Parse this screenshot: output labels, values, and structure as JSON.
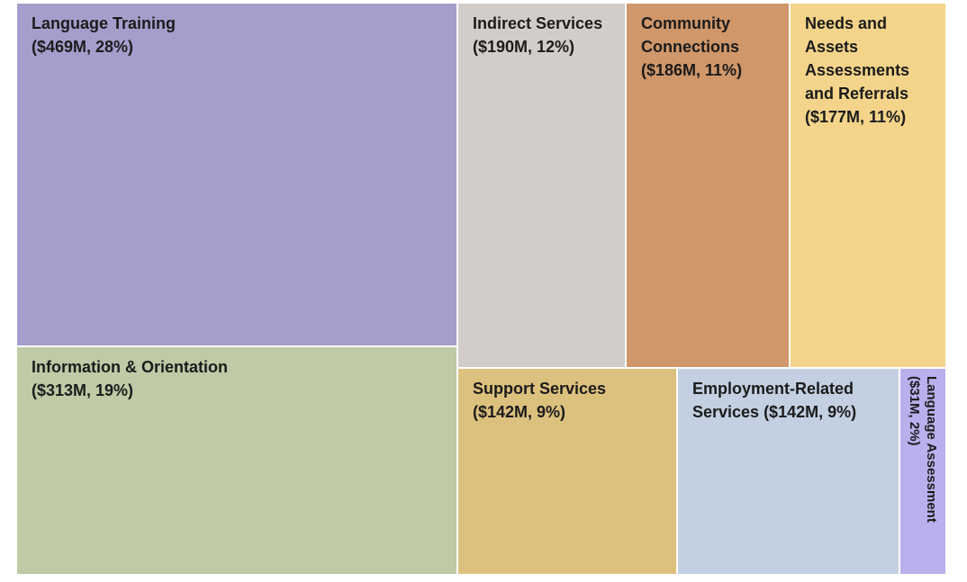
{
  "chart_data": {
    "type": "treemap",
    "unit": "$M",
    "items": [
      {
        "label_lines": [
          "Language Training",
          "($469M, 28%)"
        ],
        "value": 469,
        "percent": 28,
        "color": "#a59ecc"
      },
      {
        "label_lines": [
          "Information & Orientation",
          "($313M, 19%)"
        ],
        "value": 313,
        "percent": 19,
        "color": "#bfcaa6"
      },
      {
        "label_lines": [
          "Indirect Services",
          "($190M, 12%)"
        ],
        "value": 190,
        "percent": 12,
        "color": "#d3cdc9"
      },
      {
        "label_lines": [
          "Community",
          "Connections",
          "($186M, 11%)"
        ],
        "value": 186,
        "percent": 11,
        "color": "#d0976a"
      },
      {
        "label_lines": [
          "Needs and",
          "Assets",
          "Assessments",
          "and Referrals",
          "($177M, 11%)"
        ],
        "value": 177,
        "percent": 11,
        "color": "#f3d48a"
      },
      {
        "label_lines": [
          "Support Services",
          "($142M, 9%)"
        ],
        "value": 142,
        "percent": 9,
        "color": "#dcc17e"
      },
      {
        "label_lines": [
          "Employment-Related",
          "Services ($142M, 9%)"
        ],
        "value": 142,
        "percent": 9,
        "color": "#c2d0e2"
      },
      {
        "label_lines": [
          "Language Assessment",
          "($31M, 2%)"
        ],
        "value": 31,
        "percent": 2,
        "color": "#b9b1ee"
      }
    ]
  }
}
